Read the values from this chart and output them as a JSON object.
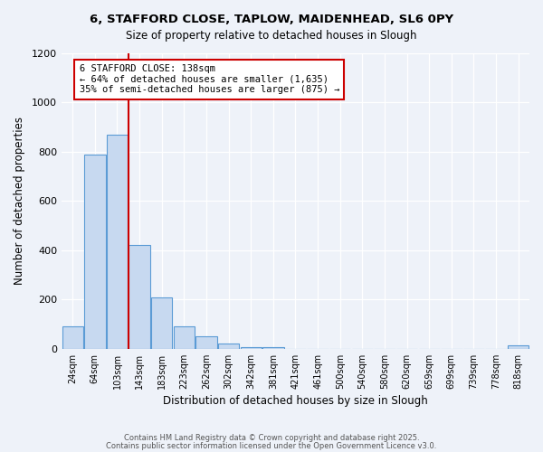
{
  "title": "6, STAFFORD CLOSE, TAPLOW, MAIDENHEAD, SL6 0PY",
  "subtitle": "Size of property relative to detached houses in Slough",
  "xlabel": "Distribution of detached houses by size in Slough",
  "ylabel": "Number of detached properties",
  "categories": [
    "24sqm",
    "64sqm",
    "103sqm",
    "143sqm",
    "183sqm",
    "223sqm",
    "262sqm",
    "302sqm",
    "342sqm",
    "381sqm",
    "421sqm",
    "461sqm",
    "500sqm",
    "540sqm",
    "580sqm",
    "620sqm",
    "659sqm",
    "699sqm",
    "739sqm",
    "778sqm",
    "818sqm"
  ],
  "values": [
    90,
    790,
    870,
    420,
    210,
    90,
    50,
    20,
    5,
    5,
    0,
    0,
    0,
    0,
    0,
    0,
    0,
    0,
    0,
    0,
    15
  ],
  "bar_color": "#c7d9f0",
  "bar_edge_color": "#5b9bd5",
  "vline_pos": 2.5,
  "vline_color": "#cc0000",
  "annotation_title": "6 STAFFORD CLOSE: 138sqm",
  "annotation_line1": "← 64% of detached houses are smaller (1,635)",
  "annotation_line2": "35% of semi-detached houses are larger (875) →",
  "annotation_box_color": "#ffffff",
  "annotation_box_edge": "#cc0000",
  "ylim": [
    0,
    1200
  ],
  "yticks": [
    0,
    200,
    400,
    600,
    800,
    1000,
    1200
  ],
  "background_color": "#eef2f9",
  "footer1": "Contains HM Land Registry data © Crown copyright and database right 2025.",
  "footer2": "Contains public sector information licensed under the Open Government Licence v3.0."
}
